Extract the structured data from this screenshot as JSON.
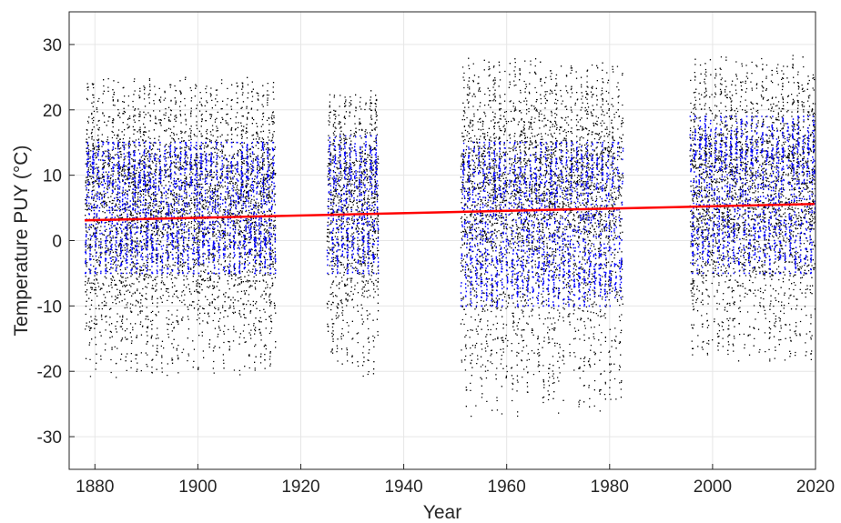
{
  "chart_data": {
    "type": "scatter",
    "title": "",
    "xlabel": "Year",
    "ylabel": "Temperature PUY (°C)",
    "xlim": [
      1875,
      2020
    ],
    "ylim": [
      -35,
      35
    ],
    "xticks": [
      1880,
      1900,
      1920,
      1940,
      1960,
      1980,
      2000,
      2020
    ],
    "yticks": [
      -30,
      -20,
      -10,
      0,
      10,
      20,
      30
    ],
    "grid": true,
    "legend": "none",
    "colors": {
      "daily_extremes": "#000000",
      "daily_mean": "#0000ff",
      "trend": "#ff0000"
    },
    "data_segments": [
      {
        "start": 1878,
        "end": 1915,
        "extreme_max": 25,
        "extreme_min": -21,
        "mean_max": 15,
        "mean_min": -5
      },
      {
        "start": 1925,
        "end": 1935,
        "extreme_max": 23,
        "extreme_min": -21,
        "mean_max": 16,
        "mean_min": -5
      },
      {
        "start": 1951,
        "end": 1982.5,
        "extreme_max": 28,
        "extreme_min": -27,
        "mean_max": 15,
        "mean_min": -10
      },
      {
        "start": 1995.5,
        "end": 2019.8,
        "extreme_max": 28.5,
        "extreme_min": -19,
        "mean_max": 19,
        "mean_min": -5
      }
    ],
    "trend": {
      "x": [
        1878,
        2019.8
      ],
      "y": [
        3.1,
        5.6
      ]
    }
  }
}
